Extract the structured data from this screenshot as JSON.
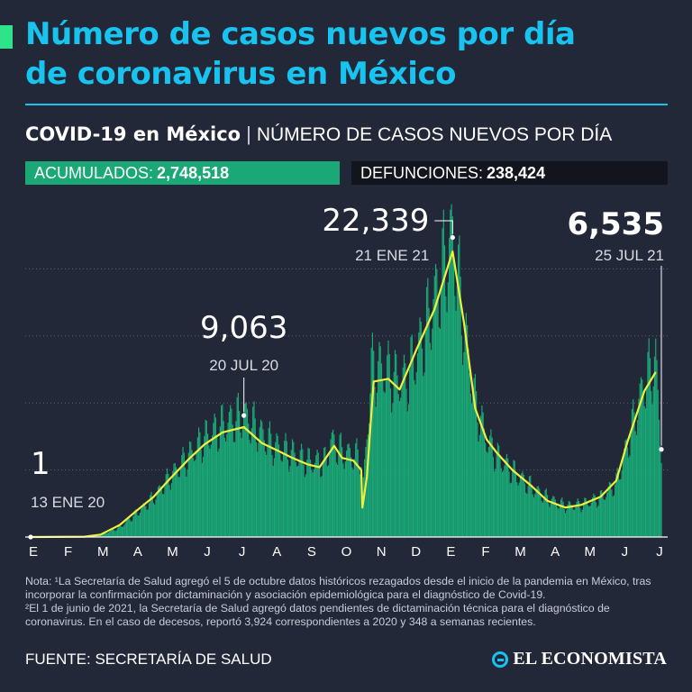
{
  "header": {
    "title_line1": "Número de casos nuevos por día",
    "title_line2": "de coronavirus en México",
    "subtitle_bold": "COVID-19 en México",
    "subtitle_sep": "|",
    "subtitle_desc": "NÚMERO DE CASOS NUEVOS POR DÍA"
  },
  "stats": {
    "accumulated_label": "ACUMULADOS:",
    "accumulated_value": "2,748,518",
    "deaths_label": "DEFUNCIONES:",
    "deaths_value": "238,424"
  },
  "colors": {
    "background": "#232838",
    "title": "#19c3ef",
    "bars": "#1aa877",
    "curve": "#eef03c",
    "accent": "#2ee38a"
  },
  "chart_data": {
    "type": "bar",
    "title": "",
    "xlabel": "",
    "ylabel": "",
    "x_range": [
      "2020-01-13",
      "2021-07-25"
    ],
    "ylim": [
      0,
      25000
    ],
    "grid": true,
    "month_ticks": [
      "E",
      "F",
      "M",
      "A",
      "M",
      "J",
      "J",
      "A",
      "S",
      "O",
      "N",
      "D",
      "E",
      "F",
      "M",
      "A",
      "M",
      "J",
      "J"
    ],
    "series": [
      {
        "kind": "daily bars",
        "points": [
          [
            "2020-01-13",
            1
          ],
          [
            "2020-02-15",
            5
          ],
          [
            "2020-03-01",
            20
          ],
          [
            "2020-03-15",
            150
          ],
          [
            "2020-04-01",
            700
          ],
          [
            "2020-04-15",
            1700
          ],
          [
            "2020-05-01",
            2900
          ],
          [
            "2020-05-15",
            4400
          ],
          [
            "2020-06-01",
            6000
          ],
          [
            "2020-06-15",
            7300
          ],
          [
            "2020-07-01",
            8300
          ],
          [
            "2020-07-20",
            9063
          ],
          [
            "2020-08-01",
            8000
          ],
          [
            "2020-08-15",
            6800
          ],
          [
            "2020-09-01",
            6200
          ],
          [
            "2020-09-15",
            5600
          ],
          [
            "2020-10-01",
            5600
          ],
          [
            "2020-10-05",
            7200
          ],
          [
            "2020-10-15",
            6300
          ],
          [
            "2020-10-25",
            6100
          ],
          [
            "2020-11-01",
            5900
          ],
          [
            "2020-11-02",
            2700
          ],
          [
            "2020-11-10",
            12500
          ],
          [
            "2020-11-20",
            12500
          ],
          [
            "2020-12-01",
            11800
          ],
          [
            "2020-12-10",
            11500
          ],
          [
            "2020-12-25",
            14600
          ],
          [
            "2021-01-08",
            18500
          ],
          [
            "2021-01-21",
            22339
          ],
          [
            "2021-01-31",
            15700
          ],
          [
            "2021-02-10",
            10000
          ],
          [
            "2021-02-20",
            7300
          ],
          [
            "2021-03-01",
            6000
          ],
          [
            "2021-03-15",
            4900
          ],
          [
            "2021-04-01",
            3700
          ],
          [
            "2021-04-15",
            2900
          ],
          [
            "2021-05-01",
            2300
          ],
          [
            "2021-05-15",
            2400
          ],
          [
            "2021-06-01",
            2900
          ],
          [
            "2021-06-15",
            4000
          ],
          [
            "2021-06-25",
            6900
          ],
          [
            "2021-07-10",
            11500
          ],
          [
            "2021-07-20",
            13000
          ],
          [
            "2021-07-25",
            6535
          ]
        ]
      },
      {
        "kind": "moving average curve",
        "points": [
          [
            "2020-01-13",
            0
          ],
          [
            "2020-03-01",
            30
          ],
          [
            "2020-03-15",
            180
          ],
          [
            "2020-04-01",
            900
          ],
          [
            "2020-04-15",
            1900
          ],
          [
            "2020-05-01",
            3000
          ],
          [
            "2020-05-15",
            4300
          ],
          [
            "2020-06-01",
            5800
          ],
          [
            "2020-06-15",
            6900
          ],
          [
            "2020-07-01",
            7800
          ],
          [
            "2020-07-20",
            8200
          ],
          [
            "2020-08-05",
            7000
          ],
          [
            "2020-08-20",
            6400
          ],
          [
            "2020-09-01",
            5900
          ],
          [
            "2020-09-15",
            5400
          ],
          [
            "2020-09-25",
            5200
          ],
          [
            "2020-10-08",
            6800
          ],
          [
            "2020-10-15",
            5900
          ],
          [
            "2020-10-25",
            5700
          ],
          [
            "2020-11-01",
            5000
          ],
          [
            "2020-11-02",
            2200
          ],
          [
            "2020-11-06",
            4500
          ],
          [
            "2020-11-12",
            11600
          ],
          [
            "2020-11-25",
            11800
          ],
          [
            "2020-12-05",
            11000
          ],
          [
            "2020-12-20",
            14000
          ],
          [
            "2021-01-05",
            17000
          ],
          [
            "2021-01-21",
            21300
          ],
          [
            "2021-01-31",
            16000
          ],
          [
            "2021-02-10",
            9600
          ],
          [
            "2021-02-20",
            7300
          ],
          [
            "2021-03-01",
            6300
          ],
          [
            "2021-03-15",
            5000
          ],
          [
            "2021-04-01",
            3800
          ],
          [
            "2021-04-15",
            2700
          ],
          [
            "2021-05-01",
            2200
          ],
          [
            "2021-05-15",
            2400
          ],
          [
            "2021-06-01",
            3000
          ],
          [
            "2021-06-15",
            4200
          ],
          [
            "2021-06-25",
            7100
          ],
          [
            "2021-07-10",
            10900
          ],
          [
            "2021-07-20",
            12300
          ]
        ]
      }
    ],
    "annotations": [
      {
        "value": "1",
        "date_label": "13 ENE 20",
        "date": "2020-01-13",
        "y": 1
      },
      {
        "value": "9,063",
        "date_label": "20 JUL 20",
        "date": "2020-07-20",
        "y": 9063
      },
      {
        "value": "22,339",
        "date_label": "21 ENE 21",
        "date": "2021-01-21",
        "y": 22339
      },
      {
        "value": "6,535",
        "date_label": "25 JUL 21",
        "date": "2021-07-25",
        "y": 6535
      }
    ]
  },
  "notes": {
    "note1": "Nota: ¹La Secretaría de Salud agregó el 5 de octubre datos históricos rezagados desde el inicio de la pandemia en México, tras incorporar la confirmación por dictaminación y asociación epidemiológica para el diagnóstico de Covid-19.",
    "note2": "²El 1 de junio de 2021, la Secretaría de Salud agregó datos pendientes de dictaminación técnica para el diagnóstico de coronavirus. En el caso de decesos, reportó 3,924 correspondientes a 2020 y 348 a semanas recientes."
  },
  "footer": {
    "source": "FUENTE: SECRETARÍA DE SALUD",
    "brand": "EL ECONOMISTA"
  }
}
